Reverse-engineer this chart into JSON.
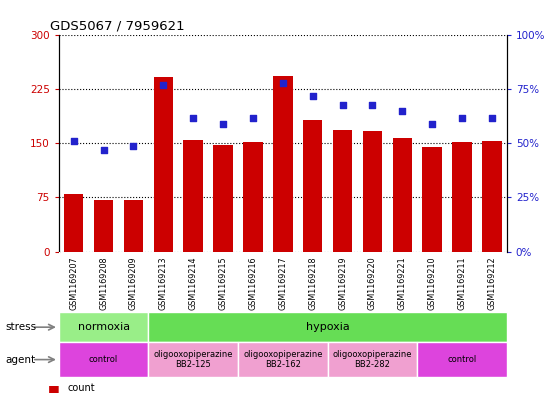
{
  "title": "GDS5067 / 7959621",
  "samples": [
    "GSM1169207",
    "GSM1169208",
    "GSM1169209",
    "GSM1169213",
    "GSM1169214",
    "GSM1169215",
    "GSM1169216",
    "GSM1169217",
    "GSM1169218",
    "GSM1169219",
    "GSM1169220",
    "GSM1169221",
    "GSM1169210",
    "GSM1169211",
    "GSM1169212"
  ],
  "counts": [
    80,
    72,
    72,
    242,
    155,
    148,
    152,
    243,
    182,
    168,
    167,
    157,
    145,
    152,
    153
  ],
  "percentiles": [
    51,
    47,
    49,
    77,
    62,
    59,
    62,
    78,
    72,
    68,
    68,
    65,
    59,
    62,
    62
  ],
  "ylim_left": [
    0,
    300
  ],
  "ylim_right": [
    0,
    100
  ],
  "yticks_left": [
    0,
    75,
    150,
    225,
    300
  ],
  "ytick_labels_left": [
    "0",
    "75",
    "150",
    "225",
    "300"
  ],
  "yticks_right": [
    0,
    25,
    50,
    75,
    100
  ],
  "ytick_labels_right": [
    "0%",
    "25%",
    "50%",
    "75%",
    "100%"
  ],
  "bar_color": "#cc0000",
  "dot_color": "#2222cc",
  "stress_row": [
    {
      "text": "normoxia",
      "start": 0,
      "end": 3,
      "color": "#99ee88"
    },
    {
      "text": "hypoxia",
      "start": 3,
      "end": 15,
      "color": "#66dd55"
    }
  ],
  "agent_row": [
    {
      "text": "control",
      "start": 0,
      "end": 3,
      "color": "#dd44dd"
    },
    {
      "text": "oligooxopiperazine\nBB2-125",
      "start": 3,
      "end": 6,
      "color": "#f0a0d0"
    },
    {
      "text": "oligooxopiperazine\nBB2-162",
      "start": 6,
      "end": 9,
      "color": "#f0a0d0"
    },
    {
      "text": "oligooxopiperazine\nBB2-282",
      "start": 9,
      "end": 12,
      "color": "#f0a0d0"
    },
    {
      "text": "control",
      "start": 12,
      "end": 15,
      "color": "#dd44dd"
    }
  ],
  "xtick_bg": "#cccccc",
  "legend_count_color": "#cc0000",
  "legend_dot_color": "#2222cc",
  "left_axis_color": "#cc0000",
  "right_axis_color": "#2222cc"
}
